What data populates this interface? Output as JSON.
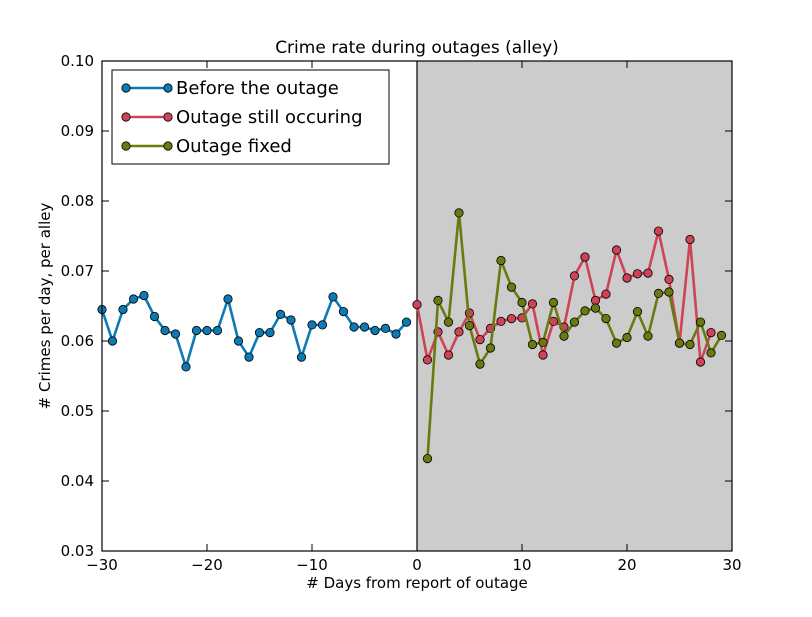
{
  "chart_data": {
    "type": "line",
    "title": "Crime rate during outages (alley)",
    "xlabel": "# Days from report of outage",
    "ylabel": "# Crimes per day, per alley",
    "xlim": [
      -30,
      30
    ],
    "ylim": [
      0.03,
      0.1
    ],
    "xticks": [
      -30,
      -20,
      -10,
      0,
      10,
      20,
      30
    ],
    "xtick_labels": [
      "−30",
      "−20",
      "−10",
      "0",
      "10",
      "20",
      "30"
    ],
    "yticks": [
      0.03,
      0.04,
      0.05,
      0.06,
      0.07,
      0.08,
      0.09,
      0.1
    ],
    "ytick_labels": [
      "0.03",
      "0.04",
      "0.05",
      "0.06",
      "0.07",
      "0.08",
      "0.09",
      "0.10"
    ],
    "shaded_region": {
      "x": [
        0,
        30
      ],
      "color": "#cccccc"
    },
    "vline_x": 0,
    "legend_position": "top-left",
    "grid": false,
    "series": [
      {
        "name": "Before the outage",
        "color": "#0d7ab4",
        "x": [
          -30,
          -29,
          -28,
          -27,
          -26,
          -25,
          -24,
          -23,
          -22,
          -21,
          -20,
          -19,
          -18,
          -17,
          -16,
          -15,
          -14,
          -13,
          -12,
          -11,
          -10,
          -9,
          -8,
          -7,
          -6,
          -5,
          -4,
          -3,
          -2,
          -1
        ],
        "y": [
          0.0645,
          0.06,
          0.0645,
          0.066,
          0.0665,
          0.0635,
          0.0615,
          0.061,
          0.0563,
          0.0615,
          0.0615,
          0.0615,
          0.066,
          0.06,
          0.0577,
          0.0612,
          0.0612,
          0.0638,
          0.063,
          0.0577,
          0.0623,
          0.0623,
          0.0663,
          0.0642,
          0.062,
          0.062,
          0.0615,
          0.0618,
          0.061,
          0.0627
        ]
      },
      {
        "name": "Outage still occuring",
        "color": "#cc4455",
        "x": [
          0,
          1,
          2,
          3,
          4,
          5,
          6,
          7,
          8,
          9,
          10,
          11,
          12,
          13,
          14,
          15,
          16,
          17,
          18,
          19,
          20,
          21,
          22,
          23,
          24,
          25,
          26,
          27,
          28
        ],
        "y": [
          0.0652,
          0.0573,
          0.0613,
          0.058,
          0.0613,
          0.064,
          0.0602,
          0.0618,
          0.0628,
          0.0632,
          0.0633,
          0.0653,
          0.058,
          0.0628,
          0.062,
          0.0693,
          0.072,
          0.0658,
          0.0667,
          0.073,
          0.069,
          0.0696,
          0.0697,
          0.0757,
          0.0688,
          0.0597,
          0.0745,
          0.057,
          0.0612
        ]
      },
      {
        "name": "Outage fixed",
        "color": "#6b7a10",
        "x": [
          1,
          2,
          3,
          4,
          5,
          6,
          7,
          8,
          9,
          10,
          11,
          12,
          13,
          14,
          15,
          16,
          17,
          18,
          19,
          20,
          21,
          22,
          23,
          24,
          25,
          26,
          27,
          28,
          29
        ],
        "y": [
          0.0432,
          0.0658,
          0.0627,
          0.0783,
          0.0622,
          0.0567,
          0.059,
          0.0715,
          0.0677,
          0.0655,
          0.0595,
          0.0598,
          0.0655,
          0.0607,
          0.0627,
          0.0643,
          0.0647,
          0.0632,
          0.0597,
          0.0605,
          0.0642,
          0.0607,
          0.0668,
          0.067,
          0.0597,
          0.0595,
          0.0627,
          0.0583,
          0.0608
        ]
      }
    ]
  }
}
